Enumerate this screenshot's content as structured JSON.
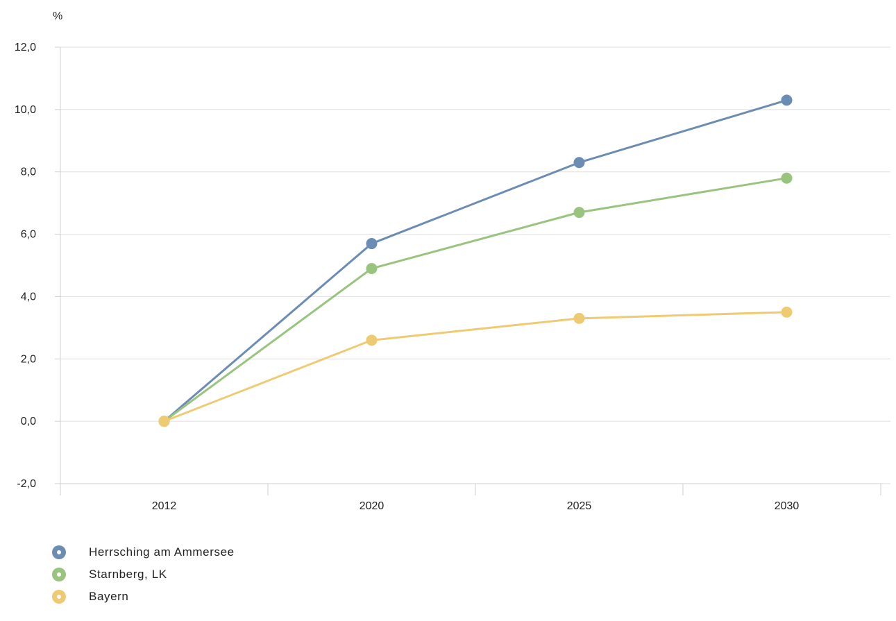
{
  "chart_data": {
    "type": "line",
    "ylabel": "%",
    "categories": [
      "2012",
      "2020",
      "2025",
      "2030"
    ],
    "ylim": [
      -2,
      12
    ],
    "yticks": [
      "-2,0",
      "0,0",
      "2,0",
      "4,0",
      "6,0",
      "8,0",
      "10,0",
      "12,0"
    ],
    "grid": true,
    "legend_position": "bottom-left",
    "series": [
      {
        "name": "Herrsching am Ammersee",
        "color": "#6b8db3",
        "values": [
          0.0,
          5.7,
          8.3,
          10.3
        ]
      },
      {
        "name": "Starnberg, LK",
        "color": "#99c47e",
        "values": [
          0.0,
          4.9,
          6.7,
          7.8
        ]
      },
      {
        "name": "Bayern",
        "color": "#eecb72",
        "values": [
          0.0,
          2.6,
          3.3,
          3.5
        ]
      }
    ]
  }
}
